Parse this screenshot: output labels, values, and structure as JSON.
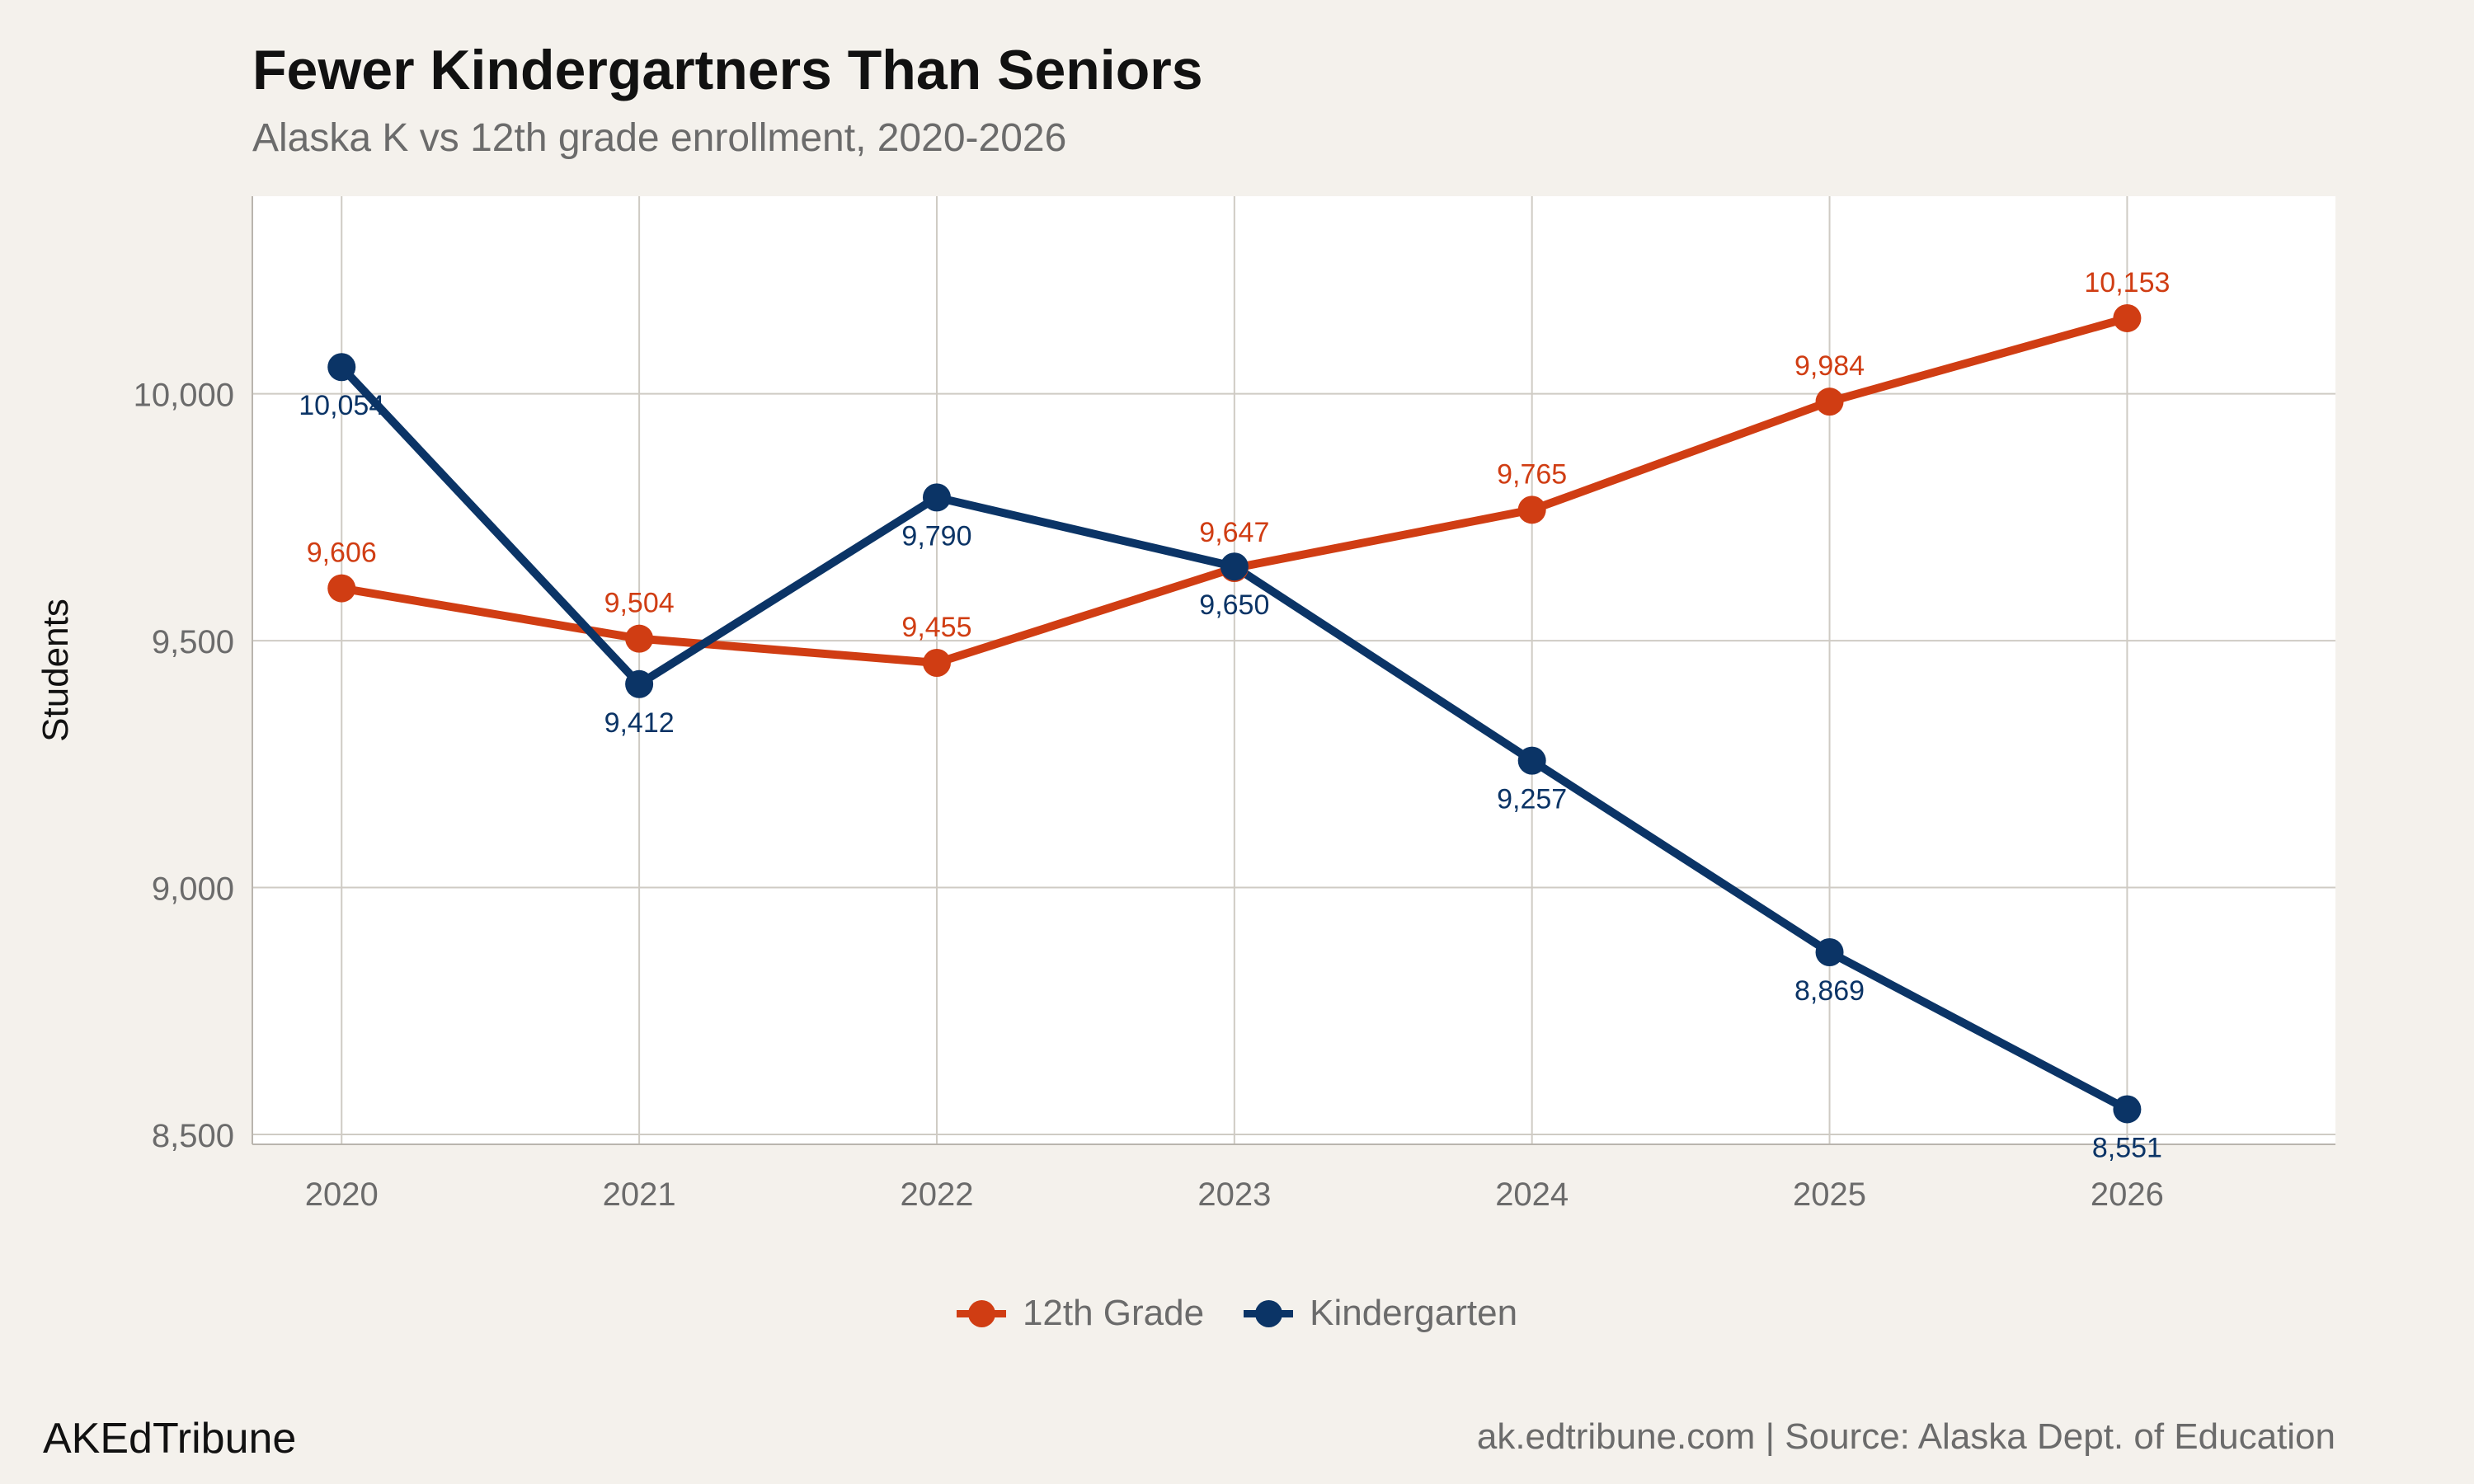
{
  "header": {
    "title": "Fewer Kindergartners Than Seniors",
    "subtitle": "Alaska K vs 12th grade enrollment, 2020-2026"
  },
  "chart_data": {
    "type": "line",
    "x": [
      2020,
      2021,
      2022,
      2023,
      2024,
      2025,
      2026
    ],
    "x_tick_labels": [
      "2020",
      "2021",
      "2022",
      "2023",
      "2024",
      "2025",
      "2026"
    ],
    "ylabel": "Students",
    "xlabel": "",
    "ylim": [
      8480,
      10400
    ],
    "xlim": [
      2019.7,
      2026.7
    ],
    "y_ticks": [
      8500,
      9000,
      9500,
      10000
    ],
    "y_tick_labels": [
      "8,500",
      "9,000",
      "9,500",
      "10,000"
    ],
    "grid": true,
    "legend_position": "bottom",
    "series": [
      {
        "name": "12th Grade",
        "color": "#d03d13",
        "values": [
          9606,
          9504,
          9455,
          9647,
          9765,
          9984,
          10153
        ],
        "labels": [
          "9,606",
          "9,504",
          "9,455",
          "9,647",
          "9,765",
          "9,984",
          "10,153"
        ],
        "label_position": "above"
      },
      {
        "name": "Kindergarten",
        "color": "#0b3466",
        "values": [
          10054,
          9412,
          9790,
          9650,
          9257,
          8869,
          8551
        ],
        "labels": [
          "10,054",
          "9,412",
          "9,790",
          "9,650",
          "9,257",
          "8,869",
          "8,551"
        ],
        "label_position": "below"
      }
    ]
  },
  "footer": {
    "brand": "AKEdTribune",
    "credit": "ak.edtribune.com | Source: Alaska Dept. of Education"
  }
}
